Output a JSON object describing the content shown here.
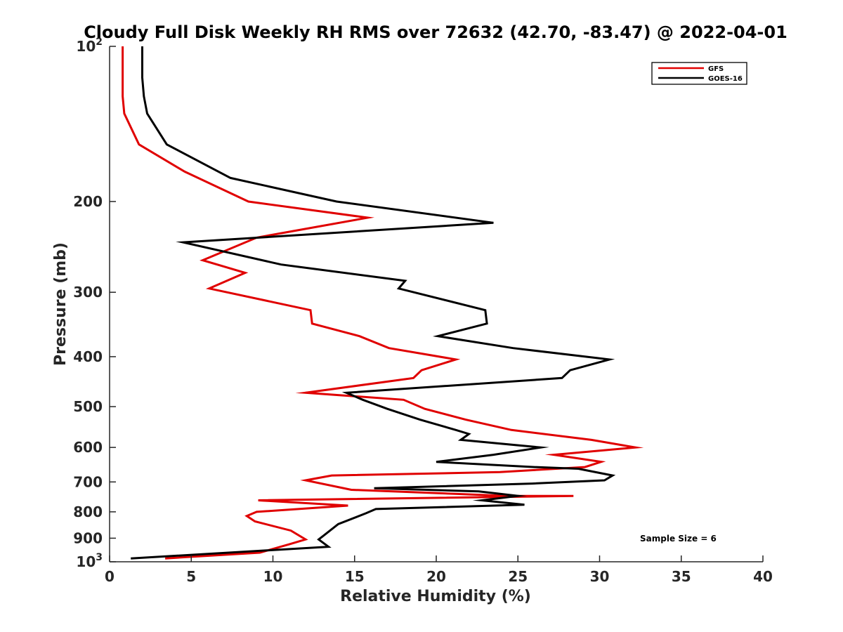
{
  "chart_data": {
    "type": "line",
    "title": "Cloudy Full Disk Weekly RH RMS over 72632 (42.70, -83.47) @ 2022-04-01",
    "xlabel": "Relative Humidity (%)",
    "ylabel": "Pressure (mb)",
    "xlim": [
      0,
      40
    ],
    "ylim": [
      100,
      1000
    ],
    "y_scale": "log",
    "y_reversed": true,
    "x_ticks": [
      "0",
      "5",
      "10",
      "15",
      "20",
      "25",
      "30",
      "35",
      "40"
    ],
    "y_ticks": [
      {
        "value": 100,
        "base": "10",
        "exp": "2"
      },
      {
        "value": 200,
        "label": "200"
      },
      {
        "value": 300,
        "label": "300"
      },
      {
        "value": 400,
        "label": "400"
      },
      {
        "value": 500,
        "label": "500"
      },
      {
        "value": 600,
        "label": "600"
      },
      {
        "value": 700,
        "label": "700"
      },
      {
        "value": 800,
        "label": "800"
      },
      {
        "value": 900,
        "label": "900"
      },
      {
        "value": 1000,
        "base": "10",
        "exp": "3"
      }
    ],
    "grid": false,
    "legend_position": "top-right",
    "annotation": "Sample Size = 6",
    "series": [
      {
        "name": "GFS",
        "color": "#e00000",
        "points": [
          [
            0.8,
            100
          ],
          [
            0.8,
            115
          ],
          [
            0.8,
            125
          ],
          [
            0.9,
            135
          ],
          [
            1.8,
            155
          ],
          [
            4.6,
            175
          ],
          [
            8.5,
            200
          ],
          [
            15.8,
            215
          ],
          [
            9.0,
            235
          ],
          [
            5.7,
            260
          ],
          [
            8.3,
            275
          ],
          [
            6.1,
            295
          ],
          [
            12.3,
            325
          ],
          [
            12.4,
            345
          ],
          [
            15.3,
            365
          ],
          [
            17.1,
            385
          ],
          [
            21.2,
            405
          ],
          [
            19.1,
            425
          ],
          [
            18.6,
            440
          ],
          [
            12.0,
            470
          ],
          [
            18.0,
            485
          ],
          [
            19.3,
            505
          ],
          [
            21.8,
            530
          ],
          [
            24.6,
            555
          ],
          [
            29.5,
            580
          ],
          [
            32.2,
            600
          ],
          [
            27.2,
            620
          ],
          [
            30.1,
            640
          ],
          [
            29.1,
            655
          ],
          [
            23.9,
            670
          ],
          [
            13.6,
            680
          ],
          [
            12.0,
            695
          ],
          [
            14.8,
            725
          ],
          [
            24.4,
            745
          ],
          [
            28.4,
            745
          ],
          [
            9.1,
            760
          ],
          [
            14.6,
            778
          ],
          [
            9.0,
            800
          ],
          [
            8.4,
            815
          ],
          [
            8.9,
            835
          ],
          [
            11.1,
            870
          ],
          [
            12.0,
            905
          ],
          [
            11.0,
            925
          ],
          [
            9.2,
            960
          ],
          [
            3.4,
            985
          ]
        ]
      },
      {
        "name": "GOES-16",
        "color": "#000000",
        "points": [
          [
            2.0,
            100
          ],
          [
            2.0,
            115
          ],
          [
            2.1,
            125
          ],
          [
            2.3,
            135
          ],
          [
            3.5,
            155
          ],
          [
            7.4,
            180
          ],
          [
            13.9,
            200
          ],
          [
            23.5,
            220
          ],
          [
            4.5,
            240
          ],
          [
            10.5,
            265
          ],
          [
            18.1,
            285
          ],
          [
            17.7,
            295
          ],
          [
            23.0,
            325
          ],
          [
            23.1,
            345
          ],
          [
            20.1,
            365
          ],
          [
            24.7,
            385
          ],
          [
            30.6,
            405
          ],
          [
            28.2,
            425
          ],
          [
            27.7,
            440
          ],
          [
            14.5,
            470
          ],
          [
            15.5,
            485
          ],
          [
            17.0,
            505
          ],
          [
            19.0,
            530
          ],
          [
            21.2,
            555
          ],
          [
            22.0,
            565
          ],
          [
            21.5,
            580
          ],
          [
            26.4,
            600
          ],
          [
            23.5,
            620
          ],
          [
            20.0,
            640
          ],
          [
            26.0,
            655
          ],
          [
            28.7,
            660
          ],
          [
            30.8,
            680
          ],
          [
            30.3,
            695
          ],
          [
            25.9,
            705
          ],
          [
            16.2,
            720
          ],
          [
            22.6,
            730
          ],
          [
            25.0,
            745
          ],
          [
            22.8,
            760
          ],
          [
            25.4,
            775
          ],
          [
            16.3,
            790
          ],
          [
            15.7,
            805
          ],
          [
            14.0,
            845
          ],
          [
            13.0,
            895
          ],
          [
            12.8,
            905
          ],
          [
            13.4,
            935
          ],
          [
            1.3,
            985
          ]
        ]
      }
    ]
  }
}
